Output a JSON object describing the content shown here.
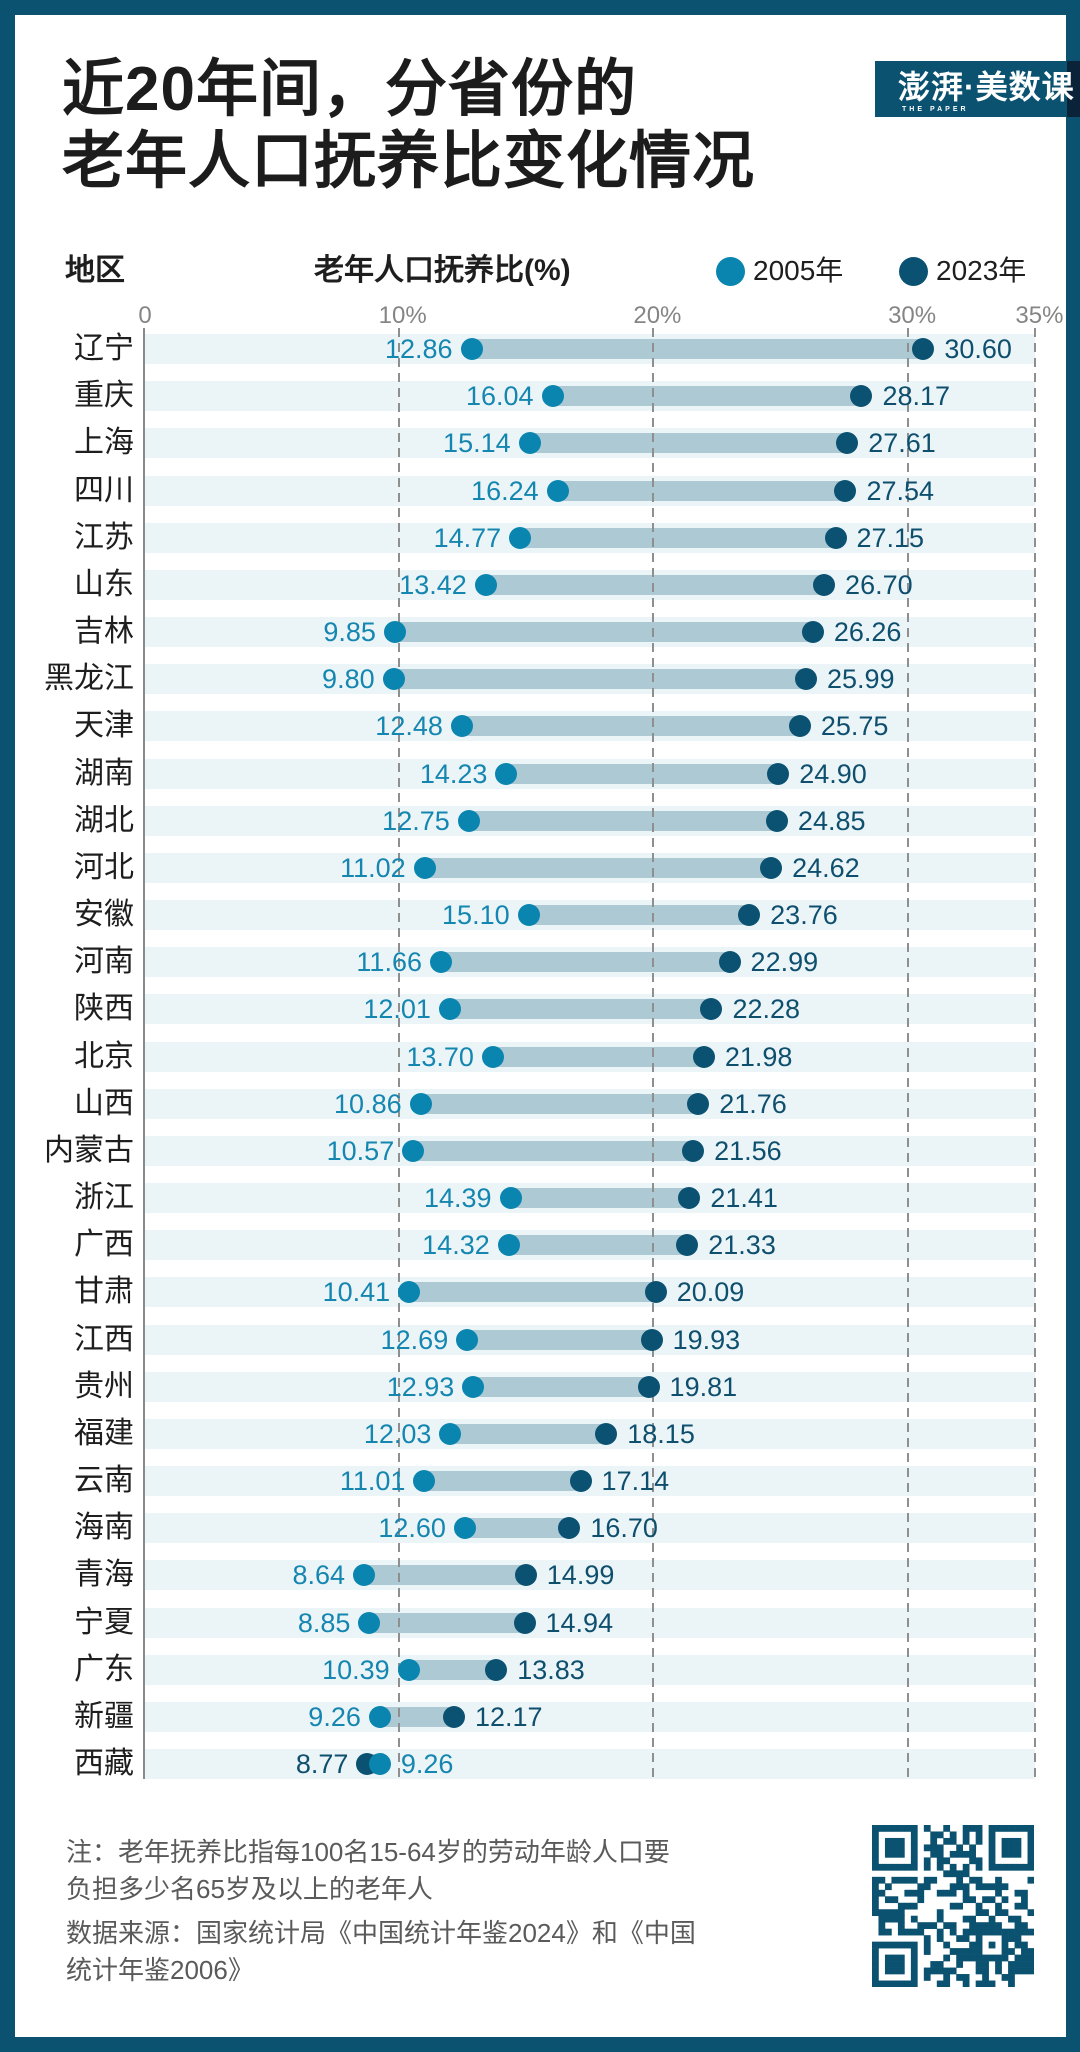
{
  "header": {
    "title_lines": [
      "近20年间，分省份的",
      "老年人口抚养比变化情况"
    ],
    "logo": {
      "text": "澎湃·美数课",
      "subtext": "THE PAPER"
    }
  },
  "chart_header": {
    "region_label": "地区",
    "metric_label": "老年人口抚养比(%)"
  },
  "colors": {
    "frame": "#0b5170",
    "band": "#ebf5f8",
    "connector": "#adc9d4",
    "series_2005": "#0a85b0",
    "series_2023": "#0b5272"
  },
  "chart_data": {
    "type": "scatter",
    "subtype": "dumbbell",
    "title": "近20年间，分省份的老年人口抚养比变化情况",
    "xlabel": "老年人口抚养比(%)",
    "ylabel": "地区",
    "xlim": [
      0,
      35
    ],
    "xticks": [
      0,
      10,
      20,
      30,
      35
    ],
    "xtick_labels": [
      "0",
      "10%",
      "20%",
      "30%",
      "35%"
    ],
    "grid": true,
    "legend": "top-right",
    "categories": [
      "辽宁",
      "重庆",
      "上海",
      "四川",
      "江苏",
      "山东",
      "吉林",
      "黑龙江",
      "天津",
      "湖南",
      "湖北",
      "河北",
      "安徽",
      "河南",
      "陕西",
      "北京",
      "山西",
      "内蒙古",
      "浙江",
      "广西",
      "甘肃",
      "江西",
      "贵州",
      "福建",
      "云南",
      "海南",
      "青海",
      "宁夏",
      "广东",
      "新疆",
      "西藏"
    ],
    "series": [
      {
        "name": "2005年",
        "color": "#0a85b0",
        "values": [
          12.86,
          16.04,
          15.14,
          16.24,
          14.77,
          13.42,
          9.85,
          9.8,
          12.48,
          14.23,
          12.75,
          11.02,
          15.1,
          11.66,
          12.01,
          13.7,
          10.86,
          10.57,
          14.39,
          14.32,
          10.41,
          12.69,
          12.93,
          12.03,
          11.01,
          12.6,
          8.64,
          8.85,
          10.39,
          9.26,
          9.26
        ],
        "labels": [
          "12.86",
          "16.04",
          "15.14",
          "16.24",
          "14.77",
          "13.42",
          "9.85",
          "9.80",
          "12.48",
          "14.23",
          "12.75",
          "11.02",
          "15.10",
          "11.66",
          "12.01",
          "13.70",
          "10.86",
          "10.57",
          "14.39",
          "14.32",
          "10.41",
          "12.69",
          "12.93",
          "12.03",
          "11.01",
          "12.60",
          "8.64",
          "8.85",
          "10.39",
          "9.26",
          "9.26"
        ]
      },
      {
        "name": "2023年",
        "color": "#0b5272",
        "values": [
          30.6,
          28.17,
          27.61,
          27.54,
          27.15,
          26.7,
          26.26,
          25.99,
          25.75,
          24.9,
          24.85,
          24.62,
          23.76,
          22.99,
          22.28,
          21.98,
          21.76,
          21.56,
          21.41,
          21.33,
          20.09,
          19.93,
          19.81,
          18.15,
          17.14,
          16.7,
          14.99,
          14.94,
          13.83,
          12.17,
          8.77
        ],
        "labels": [
          "30.60",
          "28.17",
          "27.61",
          "27.54",
          "27.15",
          "26.70",
          "26.26",
          "25.99",
          "25.75",
          "24.90",
          "24.85",
          "24.62",
          "23.76",
          "22.99",
          "22.28",
          "21.98",
          "21.76",
          "21.56",
          "21.41",
          "21.33",
          "20.09",
          "19.93",
          "19.81",
          "18.15",
          "17.14",
          "16.70",
          "14.99",
          "14.94",
          "13.83",
          "12.17",
          "8.77"
        ]
      }
    ]
  },
  "footer": {
    "note_lines": [
      "注：老年抚养比指每100名15-64岁的劳动年龄人口要",
      "负担多少名65岁及以上的老年人"
    ],
    "source_lines": [
      "数据来源：国家统计局《中国统计年鉴2024》和《中国",
      "统计年鉴2006》"
    ]
  },
  "qr_code": {
    "icon": "qr-code"
  }
}
